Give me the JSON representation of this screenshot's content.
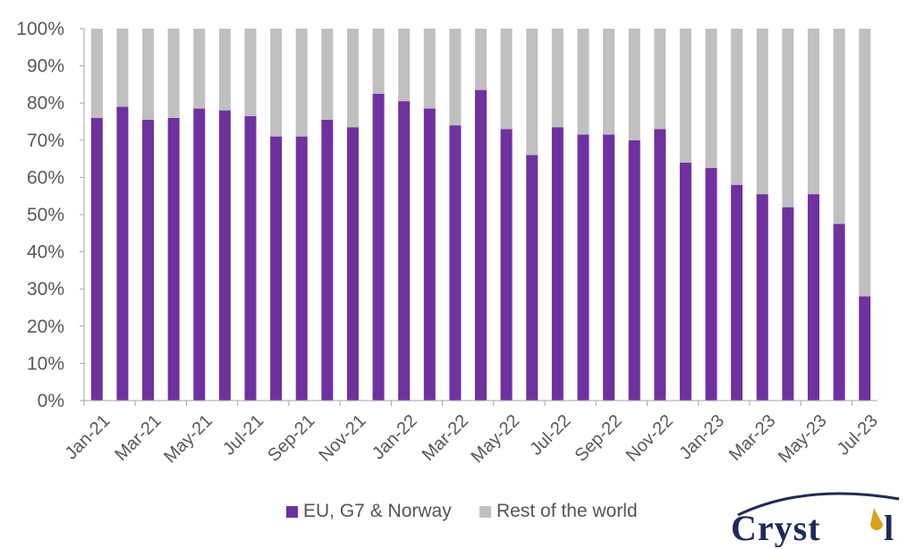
{
  "chart_data": {
    "type": "bar",
    "stacked": true,
    "categories": [
      "Jan-21",
      "Feb-21",
      "Mar-21",
      "Apr-21",
      "May-21",
      "Jun-21",
      "Jul-21",
      "Aug-21",
      "Sep-21",
      "Oct-21",
      "Nov-21",
      "Dec-21",
      "Jan-22",
      "Feb-22",
      "Mar-22",
      "Apr-22",
      "May-22",
      "Jun-22",
      "Jul-22",
      "Aug-22",
      "Sep-22",
      "Oct-22",
      "Nov-22",
      "Dec-22",
      "Jan-23",
      "Feb-23",
      "Mar-23",
      "Apr-23",
      "May-23",
      "Jun-23",
      "Jul-23"
    ],
    "xtick_labels": [
      "Jan-21",
      "Mar-21",
      "May-21",
      "Jul-21",
      "Sep-21",
      "Nov-21",
      "Jan-22",
      "Mar-22",
      "May-22",
      "Jul-22",
      "Sep-22",
      "Nov-22",
      "Jan-23",
      "Mar-23",
      "May-23",
      "Jul-23"
    ],
    "series": [
      {
        "name": "EU, G7 & Norway",
        "color": "#7030a0",
        "values": [
          76,
          79,
          75.5,
          76,
          78.5,
          78,
          76.5,
          71,
          71,
          75.5,
          73.5,
          82.5,
          80.5,
          78.5,
          74,
          83.5,
          73,
          66,
          73.5,
          71.5,
          71.5,
          70,
          73,
          64,
          62.5,
          58,
          55.5,
          52,
          55.5,
          47.5,
          28
        ]
      },
      {
        "name": "Rest of the world",
        "color": "#c0c0c0",
        "values": [
          24,
          21,
          24.5,
          24,
          21.5,
          22,
          23.5,
          29,
          29,
          24.5,
          26.5,
          17.5,
          19.5,
          21.5,
          26,
          16.5,
          27,
          34,
          26.5,
          28.5,
          28.5,
          30,
          27,
          36,
          37.5,
          42,
          44.5,
          48,
          44.5,
          52.5,
          72
        ]
      }
    ],
    "yticks": [
      "0%",
      "10%",
      "20%",
      "30%",
      "40%",
      "50%",
      "60%",
      "70%",
      "80%",
      "90%",
      "100%"
    ],
    "ylim": [
      0,
      100
    ],
    "xlabel": "",
    "ylabel": "",
    "title": "",
    "grid": false,
    "legend_position": "bottom"
  },
  "logo": {
    "text": "Crystol"
  }
}
